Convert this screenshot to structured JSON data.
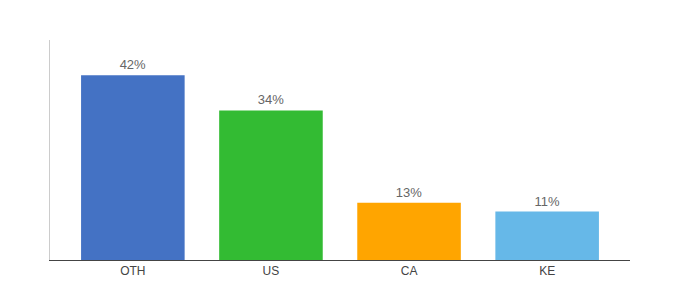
{
  "chart_data": {
    "type": "bar",
    "categories": [
      "OTH",
      "US",
      "CA",
      "KE"
    ],
    "values": [
      42,
      34,
      13,
      11
    ],
    "value_labels": [
      "42%",
      "34%",
      "13%",
      "11%"
    ],
    "data_labels": true,
    "colors": [
      "#4472C4",
      "#33BB33",
      "#FFA500",
      "#66B8E8"
    ],
    "ylim": [
      0,
      50
    ],
    "tick_labels": "x",
    "grid": false
  }
}
